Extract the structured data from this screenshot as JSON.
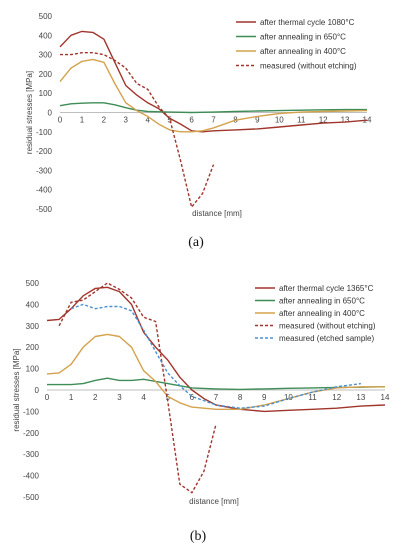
{
  "chart_data": [
    {
      "type": "line",
      "panel_label": "(a)",
      "panel_letter": "a",
      "xlabel": "distance [mm]",
      "ylabel": "residual stresses [MPa]",
      "xlim": [
        0,
        14
      ],
      "ylim": [
        -500,
        500
      ],
      "x_ticks": [
        0,
        1,
        2,
        3,
        4,
        5,
        6,
        7,
        8,
        9,
        10,
        11,
        12,
        13,
        14
      ],
      "y_ticks": [
        500,
        400,
        300,
        200,
        100,
        0,
        -100,
        -200,
        -300,
        -400,
        -500
      ],
      "grid": false,
      "legend_position": "top-right",
      "series": [
        {
          "name": "after  thermal cycle 1080°C",
          "color": "#a0352c",
          "dash": false,
          "points": [
            [
              0,
              340
            ],
            [
              0.5,
              400
            ],
            [
              1,
              420
            ],
            [
              1.5,
              415
            ],
            [
              2,
              380
            ],
            [
              2.5,
              260
            ],
            [
              3,
              140
            ],
            [
              3.5,
              90
            ],
            [
              4,
              50
            ],
            [
              4.5,
              20
            ],
            [
              5,
              -30
            ],
            [
              5.5,
              -60
            ],
            [
              6,
              -95
            ],
            [
              6.5,
              -100
            ],
            [
              7,
              -95
            ],
            [
              8,
              -90
            ],
            [
              9,
              -85
            ],
            [
              10,
              -75
            ],
            [
              11,
              -65
            ],
            [
              12,
              -55
            ],
            [
              13,
              -50
            ],
            [
              14,
              -40
            ]
          ]
        },
        {
          "name": "after annealing in 650°C",
          "color": "#3e8c56",
          "dash": false,
          "points": [
            [
              0,
              35
            ],
            [
              0.5,
              45
            ],
            [
              1,
              48
            ],
            [
              1.5,
              50
            ],
            [
              2,
              50
            ],
            [
              2.5,
              40
            ],
            [
              3,
              25
            ],
            [
              3.5,
              12
            ],
            [
              4,
              5
            ],
            [
              5,
              2
            ],
            [
              6,
              0
            ],
            [
              7,
              2
            ],
            [
              8,
              5
            ],
            [
              9,
              8
            ],
            [
              10,
              10
            ],
            [
              11,
              12
            ],
            [
              12,
              14
            ],
            [
              13,
              15
            ],
            [
              14,
              15
            ]
          ]
        },
        {
          "name": "after annealing in 400°C",
          "color": "#d4a24c",
          "dash": false,
          "points": [
            [
              0,
              160
            ],
            [
              0.5,
              230
            ],
            [
              1,
              265
            ],
            [
              1.5,
              275
            ],
            [
              2,
              260
            ],
            [
              2.5,
              150
            ],
            [
              3,
              50
            ],
            [
              3.5,
              10
            ],
            [
              4,
              -20
            ],
            [
              4.5,
              -60
            ],
            [
              5,
              -90
            ],
            [
              5.5,
              -100
            ],
            [
              6,
              -100
            ],
            [
              6.5,
              -95
            ],
            [
              7,
              -80
            ],
            [
              8,
              -40
            ],
            [
              9,
              -20
            ],
            [
              10,
              -5
            ],
            [
              11,
              2
            ],
            [
              12,
              5
            ],
            [
              13,
              8
            ],
            [
              14,
              10
            ]
          ]
        },
        {
          "name": "measured  (without etching)",
          "color": "#a0352c",
          "dash": true,
          "points": [
            [
              0,
              300
            ],
            [
              0.5,
              300
            ],
            [
              1,
              310
            ],
            [
              1.5,
              310
            ],
            [
              2,
              300
            ],
            [
              2.5,
              270
            ],
            [
              3,
              230
            ],
            [
              3.5,
              150
            ],
            [
              4,
              120
            ],
            [
              4.5,
              30
            ],
            [
              5,
              -30
            ],
            [
              5.5,
              -250
            ],
            [
              6,
              -490
            ],
            [
              6.5,
              -420
            ],
            [
              7,
              -270
            ]
          ]
        }
      ]
    },
    {
      "type": "line",
      "panel_label": "(b)",
      "panel_letter": "b",
      "xlabel": "distance [mm]",
      "ylabel": "residual stresses [MPa]",
      "xlim": [
        0,
        14
      ],
      "ylim": [
        -500,
        500
      ],
      "x_ticks": [
        0,
        1,
        2,
        3,
        4,
        5,
        6,
        7,
        8,
        9,
        10,
        11,
        12,
        13,
        14
      ],
      "y_ticks": [
        500,
        400,
        300,
        200,
        100,
        0,
        -100,
        -200,
        -300,
        -400,
        -500
      ],
      "grid": false,
      "legend_position": "top-right",
      "series": [
        {
          "name": "after  thermal cycle 1365°C",
          "color": "#a0352c",
          "dash": false,
          "points": [
            [
              0,
              325
            ],
            [
              0.5,
              330
            ],
            [
              1,
              380
            ],
            [
              1.5,
              440
            ],
            [
              2,
              475
            ],
            [
              2.5,
              480
            ],
            [
              3,
              460
            ],
            [
              3.5,
              400
            ],
            [
              4,
              270
            ],
            [
              4.5,
              200
            ],
            [
              5,
              140
            ],
            [
              5.5,
              60
            ],
            [
              6,
              0
            ],
            [
              6.5,
              -40
            ],
            [
              7,
              -70
            ],
            [
              8,
              -90
            ],
            [
              9,
              -100
            ],
            [
              10,
              -95
            ],
            [
              11,
              -90
            ],
            [
              12,
              -85
            ],
            [
              13,
              -75
            ],
            [
              14,
              -70
            ]
          ]
        },
        {
          "name": "after annealing in 650°C",
          "color": "#3e8c56",
          "dash": false,
          "points": [
            [
              0,
              25
            ],
            [
              1,
              25
            ],
            [
              1.5,
              30
            ],
            [
              2,
              45
            ],
            [
              2.5,
              55
            ],
            [
              3,
              45
            ],
            [
              3.5,
              45
            ],
            [
              4,
              50
            ],
            [
              4.5,
              40
            ],
            [
              5,
              30
            ],
            [
              6,
              10
            ],
            [
              7,
              5
            ],
            [
              8,
              3
            ],
            [
              9,
              5
            ],
            [
              10,
              8
            ],
            [
              11,
              10
            ],
            [
              12,
              12
            ],
            [
              13,
              13
            ],
            [
              14,
              15
            ]
          ]
        },
        {
          "name": "after annealing in 400°C",
          "color": "#d4a24c",
          "dash": false,
          "points": [
            [
              0,
              75
            ],
            [
              0.5,
              80
            ],
            [
              1,
              120
            ],
            [
              1.5,
              200
            ],
            [
              2,
              250
            ],
            [
              2.5,
              260
            ],
            [
              3,
              250
            ],
            [
              3.5,
              200
            ],
            [
              4,
              90
            ],
            [
              4.5,
              40
            ],
            [
              5,
              -30
            ],
            [
              5.5,
              -60
            ],
            [
              6,
              -80
            ],
            [
              6.5,
              -85
            ],
            [
              7,
              -90
            ],
            [
              8,
              -90
            ],
            [
              9,
              -70
            ],
            [
              10,
              -40
            ],
            [
              11,
              -10
            ],
            [
              12,
              10
            ],
            [
              13,
              15
            ],
            [
              14,
              15
            ]
          ]
        },
        {
          "name": "measured (without etching)",
          "color": "#a0352c",
          "dash": true,
          "points": [
            [
              0.5,
              300
            ],
            [
              1,
              410
            ],
            [
              1.5,
              420
            ],
            [
              2,
              460
            ],
            [
              2.5,
              500
            ],
            [
              3,
              470
            ],
            [
              3.5,
              430
            ],
            [
              4,
              340
            ],
            [
              4.5,
              320
            ],
            [
              5,
              -50
            ],
            [
              5.5,
              -440
            ],
            [
              6,
              -480
            ],
            [
              6.5,
              -380
            ],
            [
              7,
              -160
            ]
          ]
        },
        {
          "name": "measured (etched sample)",
          "color": "#4a90d0",
          "dash": true,
          "points": [
            [
              1,
              380
            ],
            [
              1.5,
              400
            ],
            [
              2,
              380
            ],
            [
              2.5,
              390
            ],
            [
              3,
              390
            ],
            [
              3.5,
              370
            ],
            [
              4,
              280
            ],
            [
              4.5,
              180
            ],
            [
              5,
              80
            ],
            [
              5.5,
              20
            ],
            [
              6,
              -30
            ],
            [
              7,
              -70
            ],
            [
              8,
              -85
            ],
            [
              9,
              -75
            ],
            [
              10,
              -40
            ],
            [
              11,
              -10
            ],
            [
              12,
              15
            ],
            [
              13,
              30
            ]
          ]
        }
      ]
    }
  ]
}
